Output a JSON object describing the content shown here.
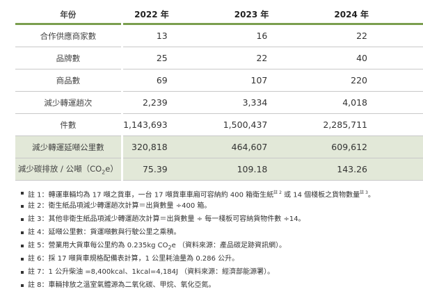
{
  "table": {
    "headers": [
      "年份",
      "2022 年",
      "2023 年",
      "2024 年"
    ],
    "rows": [
      {
        "label": "合作供應商家數",
        "values": [
          "13",
          "16",
          "22"
        ],
        "shaded": false
      },
      {
        "label": "品牌數",
        "values": [
          "25",
          "22",
          "40"
        ],
        "shaded": false
      },
      {
        "label": "商品數",
        "values": [
          "69",
          "107",
          "220"
        ],
        "shaded": false
      },
      {
        "label": "減少轉運趟次",
        "values": [
          "2,239",
          "3,334",
          "4,018"
        ],
        "shaded": false
      },
      {
        "label": "件數",
        "values": [
          "1,143,693",
          "1,500,437",
          "2,285,711"
        ],
        "shaded": false
      },
      {
        "label": "減少轉運延噸公里數",
        "values": [
          "320,818",
          "464,607",
          "609,612"
        ],
        "shaded": true
      },
      {
        "label": "減少碳排放 / 公噸（CO",
        "label_sub": "2",
        "label_end": "e）",
        "values": [
          "75.39",
          "109.18",
          "143.26"
        ],
        "shaded": true
      }
    ]
  },
  "notes": {
    "n1a": "註 1：轉運車輛均為 17 噸之貨車，一台 17 噸貨車車廂可容納約 400 箱衛生紙",
    "n1sup1": "註 2",
    "n1b": " 或 14 個棧板之貨物數量",
    "n1sup2": "註 3",
    "n1c": "。",
    "n2": "註 2：衛生紙品項減少轉運趟次計算＝出貨數量 ÷400 箱。",
    "n3": "註 3：其他非衛生紙品項減少轉運趟次計算＝出貨數量 ÷ 每一棧板可容納貨物件數 ÷14。",
    "n4": "註 4：延噸公里數：貨運噸數與行駛公里之乘積。",
    "n5a": "註 5：營業用大貨車每公里約為 0.235kg CO",
    "n5sub": "2",
    "n5b": "e （資料來源：產品碳足跡資訊網）。",
    "n6": "註 6：採 17 噸貨車規格配備表計算，1 公里耗油量為 0.286 公升。",
    "n7": "註 7：1 公升柴油 =8,400kcal、1kcal=4,184J （資料來源：經濟部能源署）。",
    "n8": "註 8：車輛排放之溫室氣體源為二氧化碳、甲烷、氧化亞氮。"
  },
  "colors": {
    "accent": "#7a9e4e",
    "shade": "#e2e8d8"
  }
}
